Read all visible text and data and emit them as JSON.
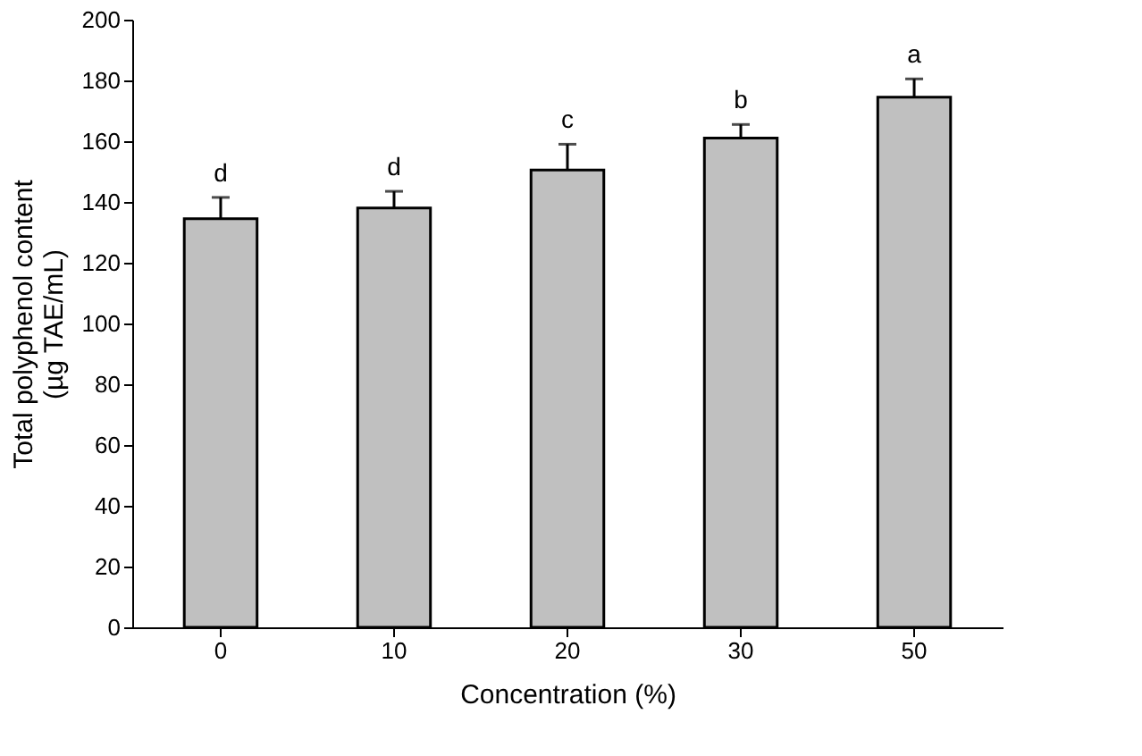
{
  "chart_data": {
    "type": "bar",
    "xlabel": "Concentration (%)",
    "ylabel": "Total polyphenol content (µg TAE/mL)",
    "categories": [
      "0",
      "10",
      "20",
      "30",
      "50"
    ],
    "values": [
      134.5,
      138,
      150.5,
      161,
      174.5
    ],
    "errors": [
      [
        134.5,
        141.5
      ],
      [
        138,
        143.5
      ],
      [
        150.5,
        159
      ],
      [
        161,
        165.5
      ],
      [
        174.5,
        180.5
      ]
    ],
    "color": "#c0c0c0",
    "ylim": [
      0,
      200
    ],
    "yticks": [
      0,
      20,
      40,
      60,
      80,
      100,
      120,
      140,
      160,
      180,
      200
    ],
    "grid": false,
    "annotations": [
      {
        "text": "d",
        "x": "0",
        "y": 141.5
      },
      {
        "text": "d",
        "x": "10",
        "y": 143.5
      },
      {
        "text": "c",
        "x": "20",
        "y": 159
      },
      {
        "text": "b",
        "x": "30",
        "y": 165.5
      },
      {
        "text": "a",
        "x": "50",
        "y": 180.5
      }
    ]
  }
}
